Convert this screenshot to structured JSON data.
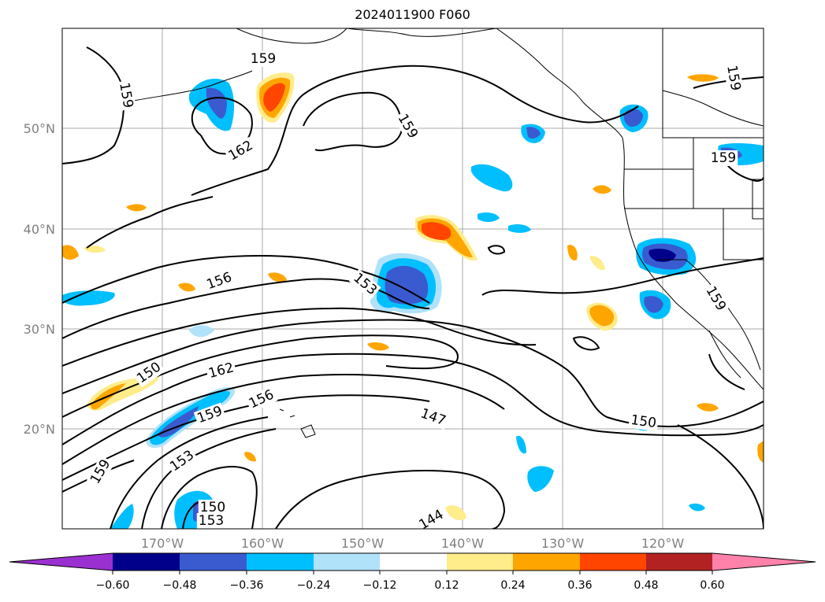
{
  "title": "2024011900 F060",
  "colors": {
    "neg_extreme": "#9b30d0",
    "neg_060": "#00008b",
    "neg_048": "#3a5bcf",
    "neg_036": "#00bfff",
    "neg_024": "#b0e2fa",
    "neutral": "#ffffff",
    "pos_012": "#ffec8b",
    "pos_024": "#ffa500",
    "pos_036": "#ff4500",
    "pos_048": "#b22222",
    "pos_extreme": "#ff82ab"
  },
  "map": {
    "lat_labels": [
      "50°N",
      "40°N",
      "30°N",
      "20°N"
    ],
    "lon_labels": [
      "170°W",
      "160°W",
      "150°W",
      "140°W",
      "130°W",
      "120°W"
    ],
    "contour_labels": [
      "159",
      "159",
      "159",
      "162",
      "159",
      "159",
      "156",
      "153",
      "150",
      "162",
      "156",
      "159",
      "147",
      "150",
      "153",
      "159",
      "150",
      "153",
      "144",
      "159"
    ]
  },
  "colorbar": {
    "tick_labels": [
      "−0.60",
      "−0.48",
      "−0.36",
      "−0.24",
      "−0.12",
      "0.12",
      "0.24",
      "0.36",
      "0.48",
      "0.60"
    ]
  }
}
